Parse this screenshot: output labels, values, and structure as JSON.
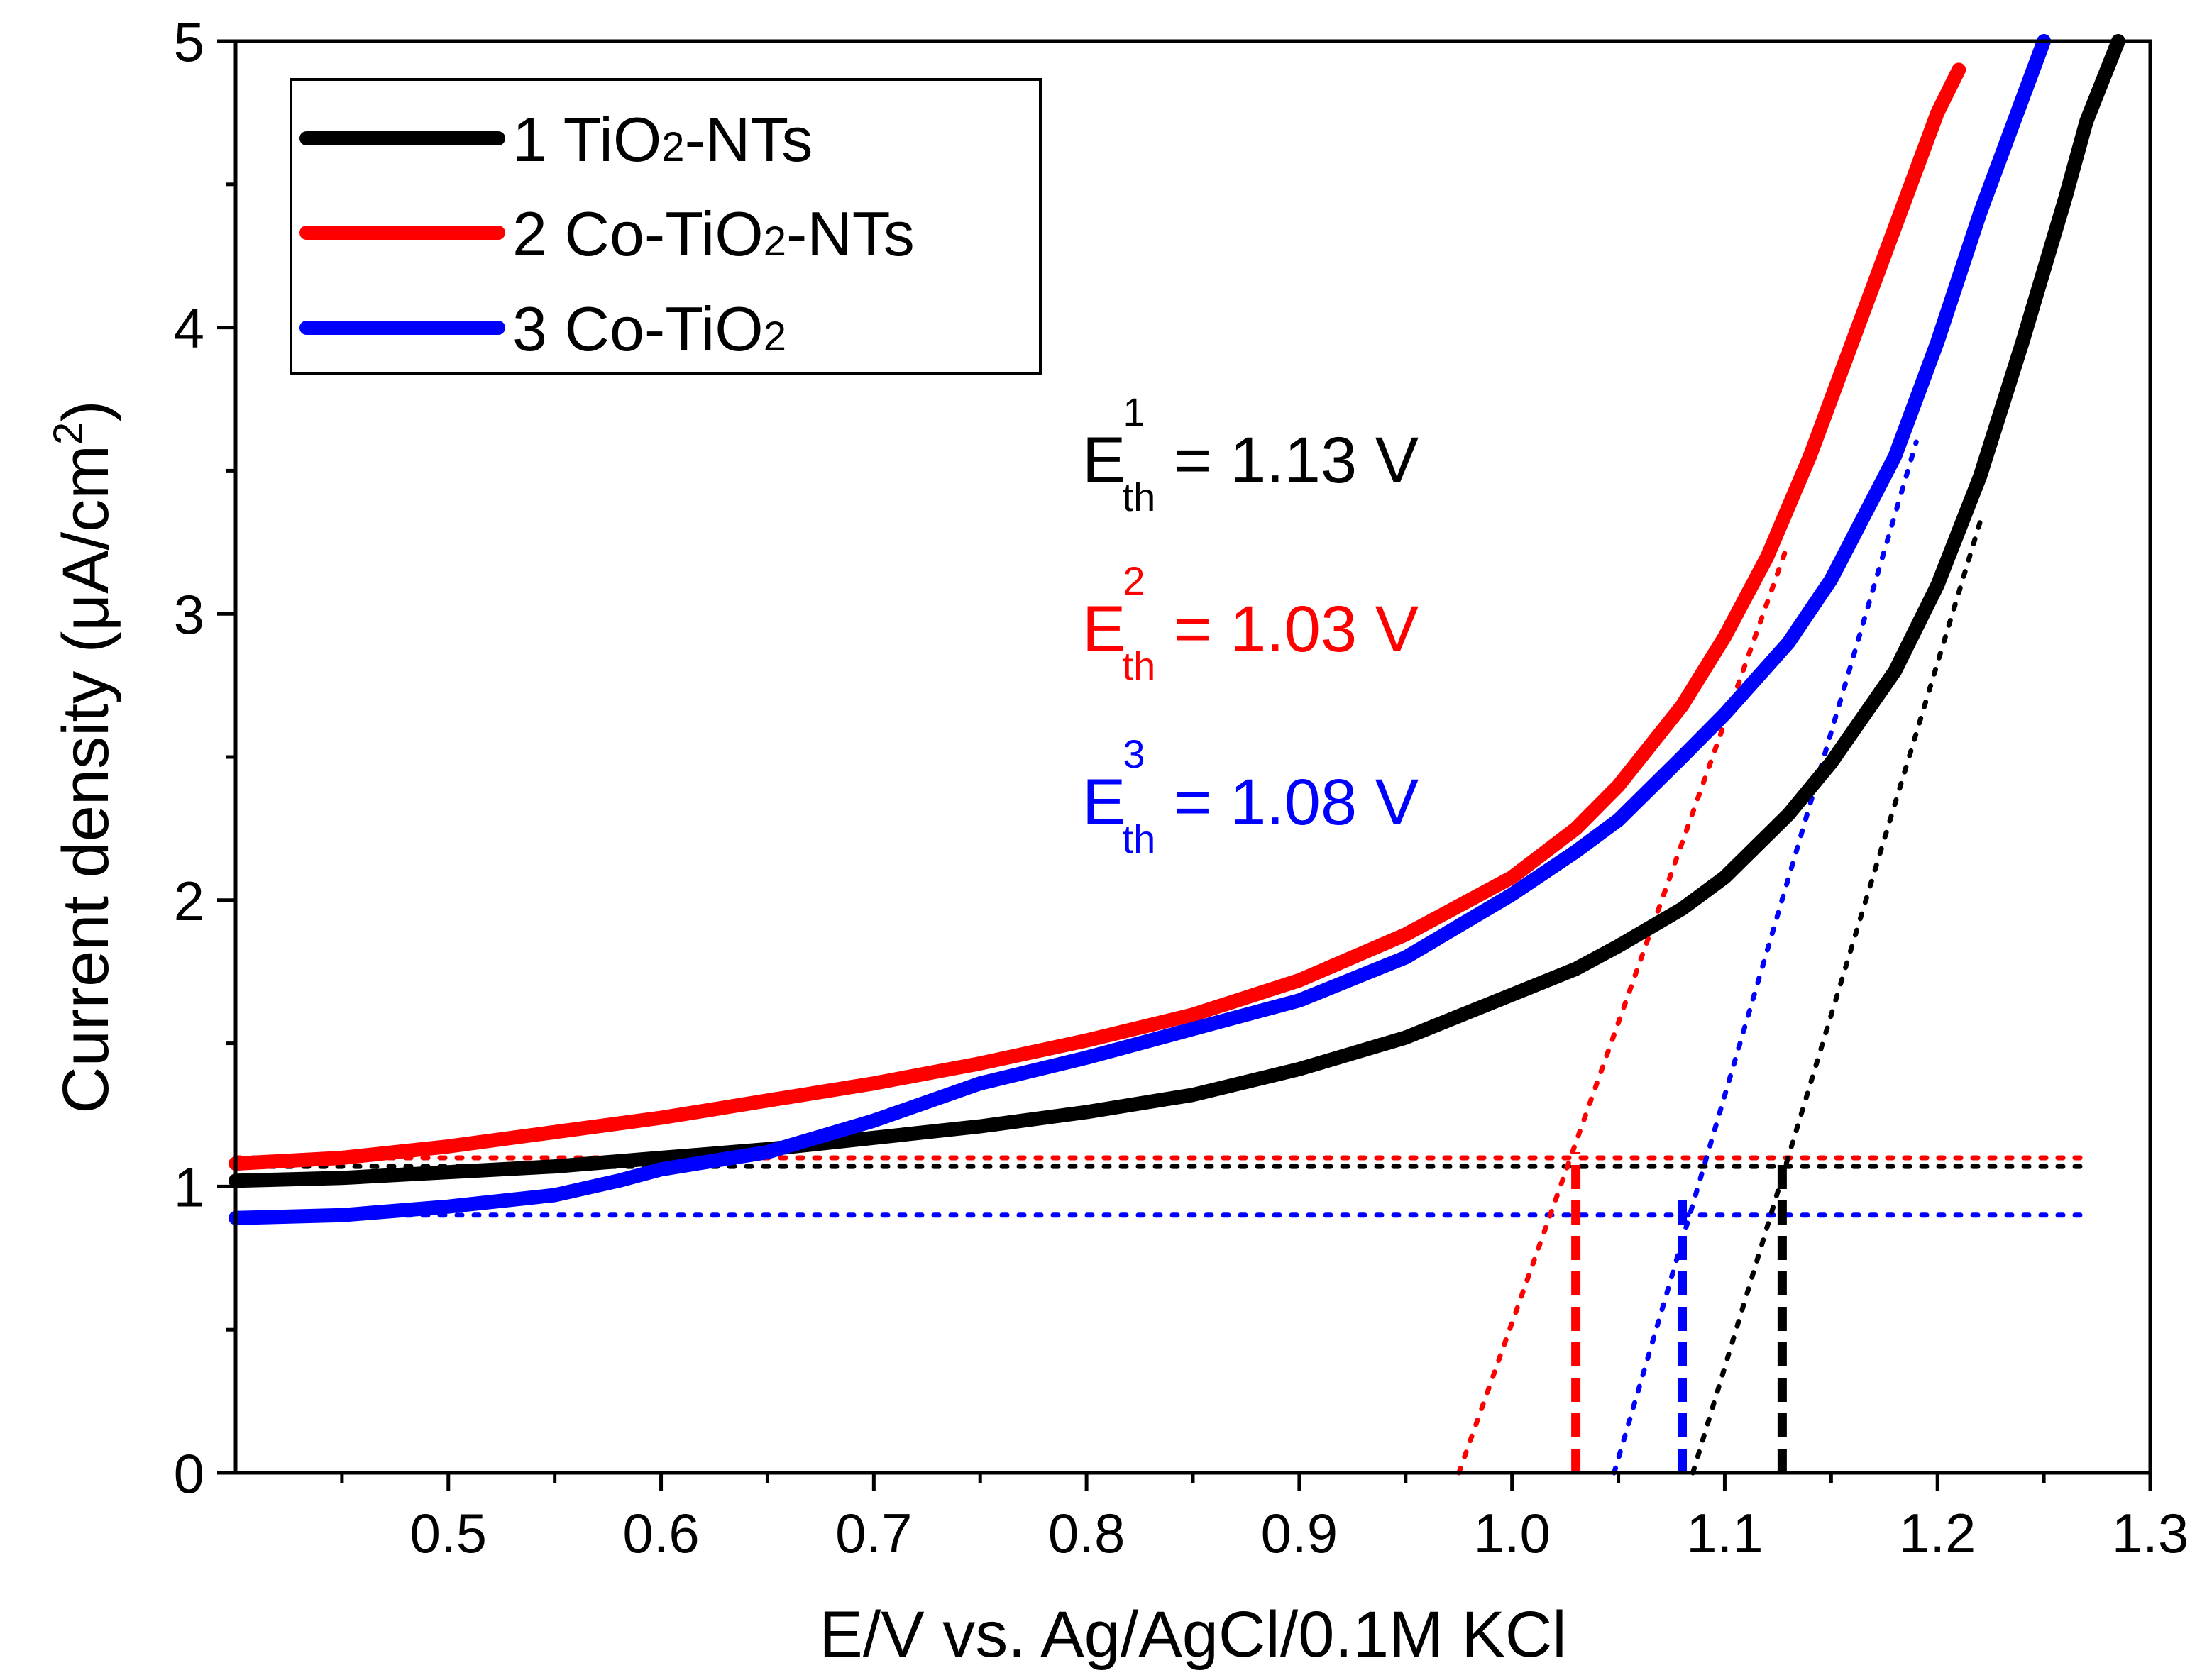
{
  "chart_data": {
    "type": "line",
    "xlabel": "E/V vs. Ag/AgCl/0.1M KCl",
    "ylabel": "Current density (μA/cm²)",
    "ylabel_parts": {
      "main": "Current density (μA/cm",
      "sup": "2",
      "tail": ")"
    },
    "xlim": [
      0.4,
      1.3
    ],
    "ylim": [
      0,
      5
    ],
    "x_ticks": [
      0.5,
      0.6,
      0.7,
      0.8,
      0.9,
      1.0,
      1.1,
      1.2,
      1.3
    ],
    "x_tick_labels": [
      "0.5",
      "0.6",
      "0.7",
      "0.8",
      "0.9",
      "1.0",
      "1.1",
      "1.2",
      "1.3"
    ],
    "y_ticks": [
      0,
      1,
      2,
      3,
      4,
      5
    ],
    "y_tick_labels": [
      "0",
      "1",
      "2",
      "3",
      "4",
      "5"
    ],
    "grid": false,
    "legend_position": "top-left",
    "series": [
      {
        "name": "1 TiO₂-NTs",
        "legend_parts": {
          "pre": "1 TiO",
          "sub": "2",
          "post": "-NTs"
        },
        "color": "#000000",
        "x": [
          0.4,
          0.45,
          0.5,
          0.55,
          0.6,
          0.65,
          0.7,
          0.75,
          0.8,
          0.85,
          0.9,
          0.95,
          1.0,
          1.03,
          1.05,
          1.08,
          1.1,
          1.13,
          1.15,
          1.18,
          1.2,
          1.22,
          1.24,
          1.26,
          1.27,
          1.285
        ],
        "y": [
          1.02,
          1.03,
          1.05,
          1.07,
          1.1,
          1.13,
          1.17,
          1.21,
          1.26,
          1.32,
          1.41,
          1.52,
          1.67,
          1.76,
          1.84,
          1.97,
          2.08,
          2.3,
          2.48,
          2.8,
          3.1,
          3.48,
          3.95,
          4.45,
          4.72,
          5.0
        ]
      },
      {
        "name": "2 Co-TiO₂-NTs",
        "legend_parts": {
          "pre": "2 Co-TiO",
          "sub": "2",
          "post": "-NTs"
        },
        "color": "#ff0000",
        "x": [
          0.4,
          0.45,
          0.5,
          0.55,
          0.6,
          0.65,
          0.7,
          0.75,
          0.8,
          0.85,
          0.9,
          0.95,
          1.0,
          1.03,
          1.05,
          1.08,
          1.1,
          1.12,
          1.14,
          1.16,
          1.18,
          1.2,
          1.21
        ],
        "y": [
          1.08,
          1.1,
          1.14,
          1.19,
          1.24,
          1.3,
          1.36,
          1.43,
          1.51,
          1.6,
          1.72,
          1.88,
          2.08,
          2.25,
          2.4,
          2.68,
          2.92,
          3.2,
          3.55,
          3.95,
          4.35,
          4.75,
          4.9
        ]
      },
      {
        "name": "3 Co-TiO₂",
        "legend_parts": {
          "pre": "3 Co-TiO",
          "sub": "2",
          "post": ""
        },
        "color": "#0000ff",
        "x": [
          0.4,
          0.45,
          0.5,
          0.55,
          0.58,
          0.6,
          0.65,
          0.7,
          0.75,
          0.8,
          0.85,
          0.9,
          0.95,
          1.0,
          1.03,
          1.05,
          1.08,
          1.1,
          1.13,
          1.15,
          1.18,
          1.2,
          1.22,
          1.24,
          1.25
        ],
        "y": [
          0.89,
          0.9,
          0.93,
          0.97,
          1.02,
          1.06,
          1.12,
          1.23,
          1.36,
          1.45,
          1.55,
          1.65,
          1.8,
          2.02,
          2.17,
          2.28,
          2.5,
          2.65,
          2.9,
          3.12,
          3.55,
          3.95,
          4.4,
          4.8,
          5.0
        ]
      }
    ],
    "baselines": [
      {
        "color": "#000000",
        "y": 1.07,
        "x": [
          0.4,
          1.27
        ]
      },
      {
        "color": "#ff0000",
        "y": 1.1,
        "x": [
          0.4,
          1.27
        ]
      },
      {
        "color": "#0000ff",
        "y": 0.9,
        "x": [
          0.4,
          1.27
        ]
      }
    ],
    "tangents": [
      {
        "color": "#000000",
        "x": [
          1.085,
          1.22
        ],
        "y": [
          0.0,
          3.32
        ]
      },
      {
        "color": "#ff0000",
        "x": [
          0.975,
          1.13
        ],
        "y": [
          0.0,
          3.25
        ]
      },
      {
        "color": "#0000ff",
        "x": [
          1.048,
          1.19
        ],
        "y": [
          0.0,
          3.6
        ]
      }
    ],
    "thresholds": [
      {
        "color": "#000000",
        "x": 1.127,
        "y_top": 1.1
      },
      {
        "color": "#ff0000",
        "x": 1.03,
        "y_top": 1.12
      },
      {
        "color": "#0000ff",
        "x": 1.08,
        "y_top": 0.97
      }
    ],
    "annotations": [
      {
        "color": "#000000",
        "base": "E",
        "sup": "1",
        "sub": "th",
        "text": "= 1.13 V"
      },
      {
        "color": "#ff0000",
        "base": "E",
        "sup": "2",
        "sub": "th",
        "text": "= 1.03 V"
      },
      {
        "color": "#0000ff",
        "base": "E",
        "sup": "3",
        "sub": "th",
        "text": "= 1.08 V"
      }
    ]
  }
}
